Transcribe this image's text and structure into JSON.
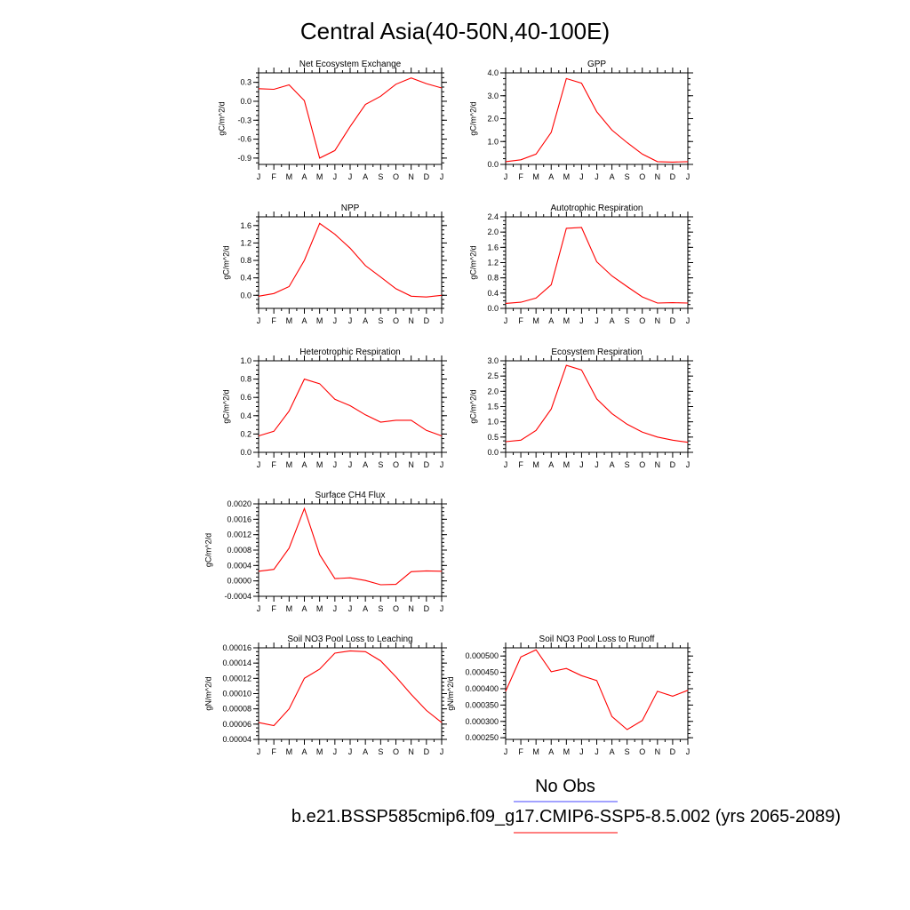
{
  "title": "Central Asia(40-50N,40-100E)",
  "legend": {
    "obs_label": "No Obs",
    "obs_color": "#4444ff",
    "case_label": "b.e21.BSSP585cmip6.f09_g17.CMIP6-SSP5-8.5.002 (yrs 2065-2089)",
    "case_color": "#ff0000"
  },
  "chart_data": [
    {
      "type": "line",
      "title": "Net Ecosystem Exchange",
      "ylabel": "gC/m^2/d",
      "xlabel": "",
      "x": [
        "J",
        "F",
        "M",
        "A",
        "M",
        "J",
        "J",
        "A",
        "S",
        "O",
        "N",
        "D",
        "J"
      ],
      "ylim": [
        -1.0,
        0.45
      ],
      "yticks": [
        -0.9,
        -0.6,
        -0.3,
        0.0,
        0.3
      ],
      "ytick_labels": [
        "-0.9",
        "-0.6",
        "-0.3",
        "0.0",
        "0.3"
      ],
      "series": [
        {
          "color": "#ff0000",
          "values": [
            0.2,
            0.19,
            0.26,
            0.01,
            -0.9,
            -0.78,
            -0.4,
            -0.05,
            0.08,
            0.27,
            0.37,
            0.28,
            0.21
          ]
        }
      ]
    },
    {
      "type": "line",
      "title": "GPP",
      "ylabel": "gC/m^2/d",
      "xlabel": "",
      "x": [
        "J",
        "F",
        "M",
        "A",
        "M",
        "J",
        "J",
        "A",
        "S",
        "O",
        "N",
        "D",
        "J"
      ],
      "ylim": [
        0.0,
        4.0
      ],
      "yticks": [
        0.0,
        1.0,
        2.0,
        3.0,
        4.0
      ],
      "ytick_labels": [
        "0.0",
        "1.0",
        "2.0",
        "3.0",
        "4.0"
      ],
      "series": [
        {
          "color": "#ff0000",
          "values": [
            0.12,
            0.2,
            0.45,
            1.4,
            3.75,
            3.55,
            2.3,
            1.5,
            0.95,
            0.45,
            0.12,
            0.1,
            0.12
          ]
        }
      ]
    },
    {
      "type": "line",
      "title": "NPP",
      "ylabel": "gC/m^2/d",
      "xlabel": "",
      "x": [
        "J",
        "F",
        "M",
        "A",
        "M",
        "J",
        "J",
        "A",
        "S",
        "O",
        "N",
        "D",
        "J"
      ],
      "ylim": [
        -0.3,
        1.8
      ],
      "yticks": [
        0.0,
        0.4,
        0.8,
        1.2,
        1.6
      ],
      "ytick_labels": [
        "0.0",
        "0.4",
        "0.8",
        "1.2",
        "1.6"
      ],
      "series": [
        {
          "color": "#ff0000",
          "values": [
            -0.02,
            0.04,
            0.2,
            0.8,
            1.65,
            1.4,
            1.08,
            0.68,
            0.42,
            0.15,
            -0.02,
            -0.04,
            0.0
          ]
        }
      ]
    },
    {
      "type": "line",
      "title": "Autotrophic Respiration",
      "ylabel": "gC/m^2/d",
      "xlabel": "",
      "x": [
        "J",
        "F",
        "M",
        "A",
        "M",
        "J",
        "J",
        "A",
        "S",
        "O",
        "N",
        "D",
        "J"
      ],
      "ylim": [
        0.0,
        2.4
      ],
      "yticks": [
        0.0,
        0.4,
        0.8,
        1.2,
        1.6,
        2.0,
        2.4
      ],
      "ytick_labels": [
        "0.0",
        "0.4",
        "0.8",
        "1.2",
        "1.6",
        "2.0",
        "2.4"
      ],
      "series": [
        {
          "color": "#ff0000",
          "values": [
            0.13,
            0.16,
            0.27,
            0.62,
            2.1,
            2.12,
            1.22,
            0.85,
            0.57,
            0.3,
            0.14,
            0.15,
            0.14
          ]
        }
      ]
    },
    {
      "type": "line",
      "title": "Heterotrophic Respiration",
      "ylabel": "gC/m^2/d",
      "xlabel": "",
      "x": [
        "J",
        "F",
        "M",
        "A",
        "M",
        "J",
        "J",
        "A",
        "S",
        "O",
        "N",
        "D",
        "J"
      ],
      "ylim": [
        0.0,
        1.0
      ],
      "yticks": [
        0.0,
        0.2,
        0.4,
        0.6,
        0.8,
        1.0
      ],
      "ytick_labels": [
        "0.0",
        "0.2",
        "0.4",
        "0.6",
        "0.8",
        "1.0"
      ],
      "series": [
        {
          "color": "#ff0000",
          "values": [
            0.18,
            0.23,
            0.45,
            0.8,
            0.75,
            0.58,
            0.51,
            0.41,
            0.33,
            0.35,
            0.35,
            0.24,
            0.18
          ]
        }
      ]
    },
    {
      "type": "line",
      "title": "Ecosystem Respiration",
      "ylabel": "gC/m^2/d",
      "xlabel": "",
      "x": [
        "J",
        "F",
        "M",
        "A",
        "M",
        "J",
        "J",
        "A",
        "S",
        "O",
        "N",
        "D",
        "J"
      ],
      "ylim": [
        0.0,
        3.0
      ],
      "yticks": [
        0.0,
        0.5,
        1.0,
        1.5,
        2.0,
        2.5,
        3.0
      ],
      "ytick_labels": [
        "0.0",
        "0.5",
        "1.0",
        "1.5",
        "2.0",
        "2.5",
        "3.0"
      ],
      "series": [
        {
          "color": "#ff0000",
          "values": [
            0.35,
            0.4,
            0.72,
            1.42,
            2.85,
            2.7,
            1.75,
            1.27,
            0.92,
            0.66,
            0.5,
            0.4,
            0.33
          ]
        }
      ]
    },
    {
      "type": "line",
      "title": "Surface CH4 Flux",
      "ylabel": "gC/m^2/d",
      "xlabel": "",
      "x": [
        "J",
        "F",
        "M",
        "A",
        "M",
        "J",
        "J",
        "A",
        "S",
        "O",
        "N",
        "D",
        "J"
      ],
      "ylim": [
        -0.0004,
        0.002
      ],
      "yticks": [
        -0.0004,
        0.0,
        0.0004,
        0.0008,
        0.0012,
        0.0016,
        0.002
      ],
      "ytick_labels": [
        "-0.0004",
        "0.0000",
        "0.0004",
        "0.0008",
        "0.0012",
        "0.0016",
        "0.0020"
      ],
      "series": [
        {
          "color": "#ff0000",
          "values": [
            0.00025,
            0.0003,
            0.00085,
            0.00188,
            0.00068,
            6e-05,
            8e-05,
            1e-05,
            -0.0001,
            -9e-05,
            0.00024,
            0.00026,
            0.00025
          ]
        }
      ]
    },
    {
      "type": "line",
      "title": "Soil NO3 Pool Loss to Leaching",
      "ylabel": "gN/m^2/d",
      "xlabel": "",
      "x": [
        "J",
        "F",
        "M",
        "A",
        "M",
        "J",
        "J",
        "A",
        "S",
        "O",
        "N",
        "D",
        "J"
      ],
      "ylim": [
        4e-05,
        0.00016
      ],
      "yticks": [
        4e-05,
        6e-05,
        8e-05,
        0.0001,
        0.00012,
        0.00014,
        0.00016
      ],
      "ytick_labels": [
        "0.00004",
        "0.00006",
        "0.00008",
        "0.00010",
        "0.00012",
        "0.00014",
        "0.00016"
      ],
      "series": [
        {
          "color": "#ff0000",
          "values": [
            6.2e-05,
            5.8e-05,
            8e-05,
            0.00012,
            0.000132,
            0.000153,
            0.000156,
            0.000155,
            0.000143,
            0.000122,
            9.9e-05,
            7.8e-05,
            6.2e-05
          ]
        }
      ]
    },
    {
      "type": "line",
      "title": "Soil NO3 Pool Loss to Runoff",
      "ylabel": "gN/m^2/d",
      "xlabel": "",
      "x": [
        "J",
        "F",
        "M",
        "A",
        "M",
        "J",
        "J",
        "A",
        "S",
        "O",
        "N",
        "D",
        "J"
      ],
      "ylim": [
        0.000245,
        0.000525
      ],
      "yticks": [
        0.00025,
        0.0003,
        0.00035,
        0.0004,
        0.00045,
        0.0005
      ],
      "ytick_labels": [
        "0.000250",
        "0.000300",
        "0.000350",
        "0.000400",
        "0.000450",
        "0.000500"
      ],
      "series": [
        {
          "color": "#ff0000",
          "values": [
            0.000392,
            0.000497,
            0.000519,
            0.000452,
            0.000462,
            0.00044,
            0.000425,
            0.000315,
            0.000275,
            0.000303,
            0.000392,
            0.000377,
            0.000395
          ]
        }
      ]
    }
  ]
}
